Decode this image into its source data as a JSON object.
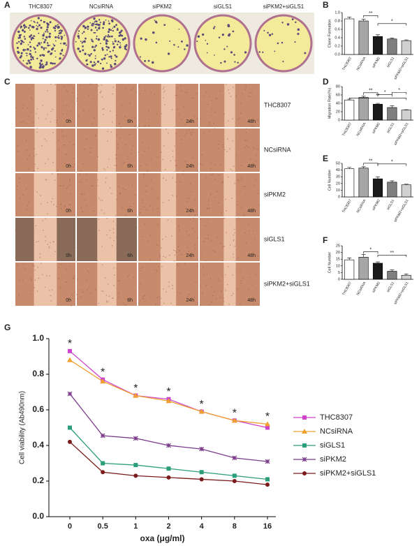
{
  "panel_labels": [
    "A",
    "B",
    "C",
    "D",
    "E",
    "F",
    "G"
  ],
  "panel_a": {
    "labels": [
      "THC8307",
      "NCsiRNA",
      "siPKM2",
      "siGLS1",
      "siPKM2+siGLS1"
    ]
  },
  "panel_c": {
    "rows": [
      "THC8307",
      "NCsiRNA",
      "siPKM2",
      "siGLS1",
      "siPKM2+siGLS1"
    ],
    "timepoints": [
      "0h",
      "6h",
      "24h",
      "48h"
    ]
  },
  "chart_data": [
    {
      "type": "bar",
      "y_label": "Clone Formation",
      "categories": [
        "THC8307",
        "NCsiRNA",
        "siPKM2",
        "siGLS1",
        "siPKM2+siGLS1"
      ],
      "values": [
        0.85,
        0.8,
        0.43,
        0.37,
        0.33
      ],
      "errors": [
        0.04,
        0.04,
        0.04,
        0.02,
        0.02
      ],
      "colors": [
        "#ffffff",
        "#a6a6a6",
        "#1a1a1a",
        "#7f7f7f",
        "#d0d0d0"
      ],
      "ylim": [
        0,
        1.0
      ],
      "yticks": [
        {
          "value": 0,
          "label": "0.0"
        },
        {
          "value": 0.2,
          "label": "0.2"
        },
        {
          "value": 0.4,
          "label": "0.4"
        },
        {
          "value": 0.6,
          "label": "0.6"
        },
        {
          "value": 0.8,
          "label": "0.8"
        },
        {
          "value": 1.0,
          "label": "1.0"
        }
      ],
      "annotations": [
        "**",
        "*"
      ]
    },
    {
      "type": "bar",
      "y_label": "Migration Rate(%)",
      "categories": [
        "THC8307",
        "NCsiRNA",
        "siPKM2",
        "siGLS1",
        "siPKM2+siGLS1"
      ],
      "values": [
        48,
        54,
        38,
        30,
        24
      ],
      "errors": [
        2,
        3,
        2,
        4,
        1
      ],
      "colors": [
        "#ffffff",
        "#a6a6a6",
        "#1a1a1a",
        "#7f7f7f",
        "#d0d0d0"
      ],
      "ylim": [
        0,
        80
      ],
      "yticks": [
        0,
        20,
        40,
        60,
        80
      ],
      "annotations": [
        "**",
        "**",
        "*",
        "*"
      ]
    },
    {
      "type": "bar",
      "y_label": "Cell Number",
      "categories": [
        "THC8307",
        "NCsiRNA",
        "siPKM2",
        "siGLS1",
        "siPKM2+siGLS1"
      ],
      "values": [
        42,
        43,
        27,
        22,
        18
      ],
      "errors": [
        2,
        2,
        3,
        2,
        1
      ],
      "colors": [
        "#ffffff",
        "#a6a6a6",
        "#1a1a1a",
        "#7f7f7f",
        "#d0d0d0"
      ],
      "ylim": [
        0,
        50
      ],
      "yticks": [
        0,
        10,
        20,
        30,
        40,
        50
      ],
      "annotations": [
        "**",
        "*"
      ]
    },
    {
      "type": "bar",
      "y_label": "Cell Number",
      "categories": [
        "THC8307",
        "NCsiRNA",
        "siPKM2",
        "siGLS1",
        "siPKM2+siGLS1"
      ],
      "values": [
        14.5,
        16.5,
        12,
        6,
        3
      ],
      "errors": [
        1.5,
        2,
        1,
        1,
        1
      ],
      "colors": [
        "#ffffff",
        "#a6a6a6",
        "#1a1a1a",
        "#7f7f7f",
        "#d0d0d0"
      ],
      "ylim": [
        0,
        25
      ],
      "yticks": [
        0,
        5,
        10,
        15,
        20,
        25
      ],
      "annotations": [
        "*",
        "**"
      ]
    },
    {
      "type": "line",
      "y_label": "Cell viability (Ab490nm)",
      "x_label": "oxa (μg/ml)",
      "categories": [
        "0",
        "0.5",
        "1",
        "2",
        "4",
        "8",
        "16"
      ],
      "ylim": [
        0,
        1.0
      ],
      "yticks": [
        {
          "value": 0,
          "label": "0.0"
        },
        {
          "value": 0.2,
          "label": "0.2"
        },
        {
          "value": 0.4,
          "label": "0.4"
        },
        {
          "value": 0.6,
          "label": "0.6"
        },
        {
          "value": 0.8,
          "label": "0.8"
        },
        {
          "value": 1.0,
          "label": "1.0"
        }
      ],
      "annotations": [
        "*",
        "*",
        "*",
        "*",
        "*",
        "*",
        "*"
      ],
      "series": [
        {
          "name": "THC8307",
          "color": "#cc44cc",
          "marker": "square",
          "values": [
            0.93,
            0.77,
            0.68,
            0.66,
            0.59,
            0.54,
            0.5
          ]
        },
        {
          "name": "NCsiRNA",
          "color": "#f0a030",
          "marker": "triangle",
          "values": [
            0.88,
            0.76,
            0.68,
            0.65,
            0.59,
            0.54,
            0.52
          ]
        },
        {
          "name": "siGLS1",
          "color": "#2a9d7a",
          "marker": "square",
          "values": [
            0.5,
            0.3,
            0.29,
            0.27,
            0.25,
            0.23,
            0.21
          ]
        },
        {
          "name": "siPKM2",
          "color": "#7a3a8a",
          "marker": "star",
          "values": [
            0.69,
            0.455,
            0.44,
            0.4,
            0.38,
            0.33,
            0.31
          ]
        },
        {
          "name": "siPKM2+siGLS1",
          "color": "#7a1a1a",
          "marker": "circle",
          "values": [
            0.42,
            0.25,
            0.23,
            0.22,
            0.21,
            0.2,
            0.18
          ]
        }
      ]
    }
  ]
}
